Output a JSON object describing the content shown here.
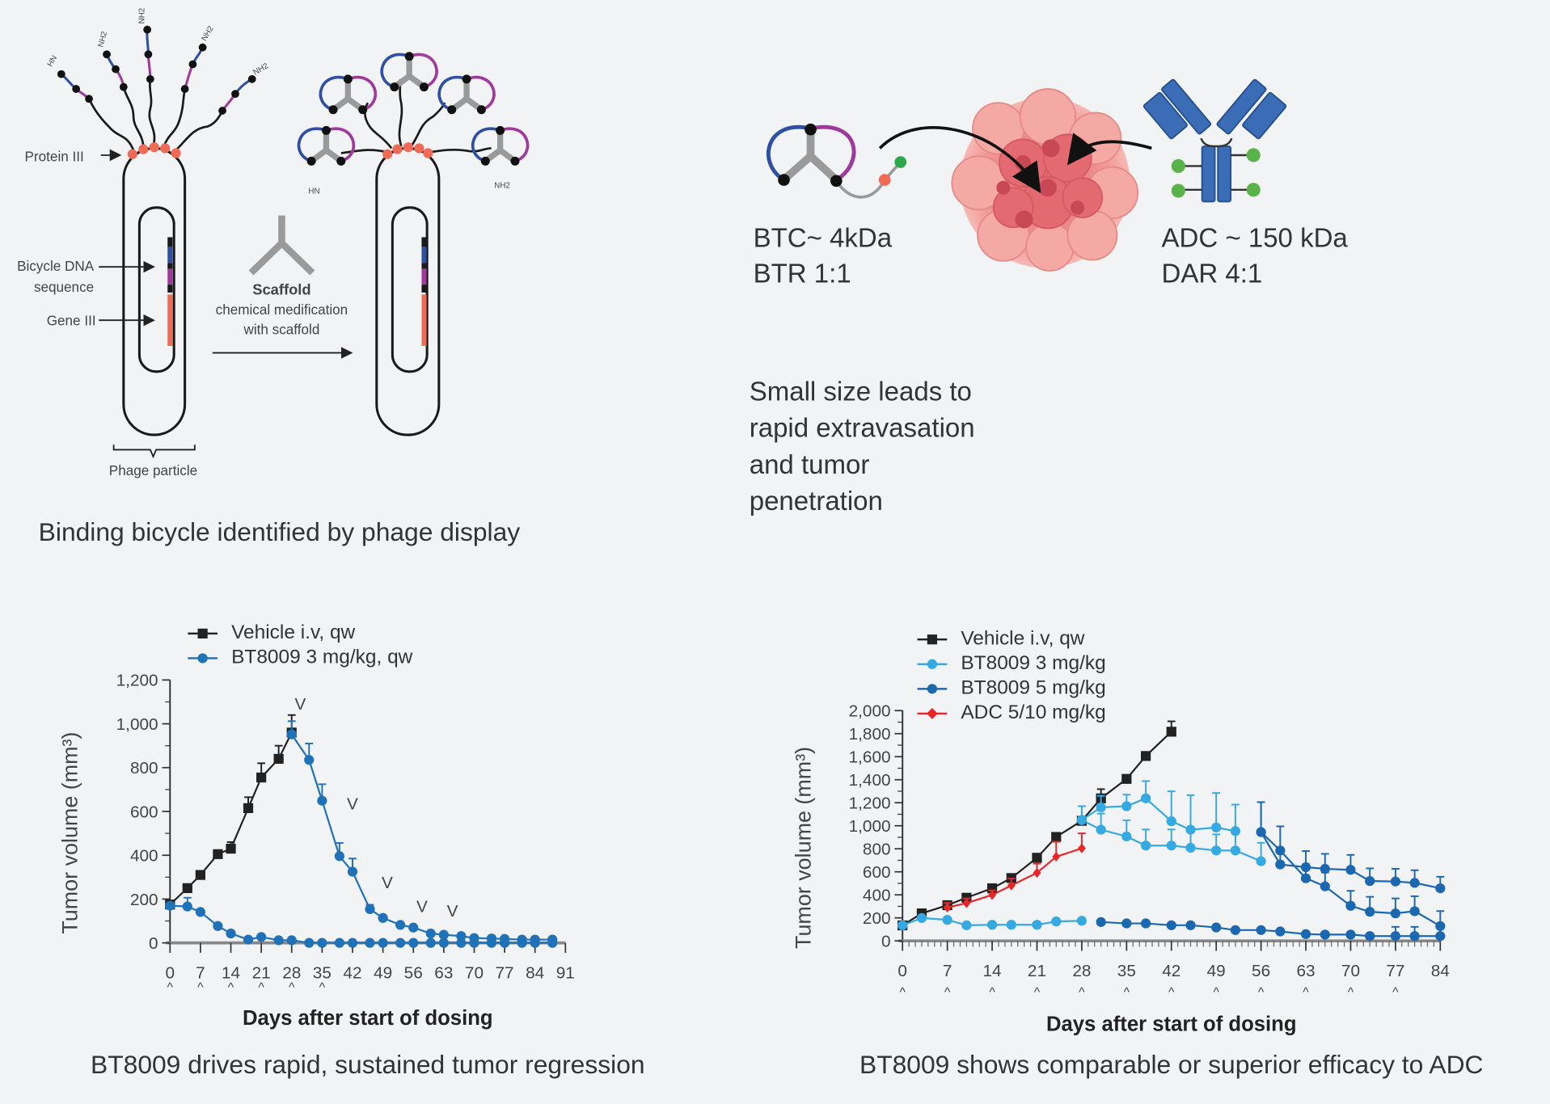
{
  "diagram_phage": {
    "protein_label": "Protein III",
    "dna_label_1": "Bicycle DNA",
    "dna_label_2": "sequence",
    "gene_label": "Gene III",
    "scaffold_title": "Scaffold",
    "scaffold_line1": "chemical medification",
    "scaffold_line2": "with scaffold",
    "particle_label": "Phage particle",
    "terminal_nh2": "NH2",
    "terminal_hn": "HN",
    "caption": "Binding bicycle identified by phage display",
    "colors": {
      "blue": "#2e4fa3",
      "magenta": "#a0399c",
      "red": "#ef6b55",
      "gray": "#9a9a9a"
    }
  },
  "diagram_btc": {
    "btc_line1": "BTC~ 4kDa",
    "btc_line2": "BTR 1:1",
    "adc_line1": "ADC ~ 150 kDa",
    "adc_line2": "DAR 4:1",
    "text_lines": [
      "Small size leads to",
      "rapid extravasation",
      "and tumor",
      "penetration"
    ],
    "colors": {
      "antibody": "#3a6db5",
      "payload": "#5ab34a",
      "tumor": "#f08a8a"
    }
  },
  "chart_data": [
    {
      "type": "line",
      "xlabel": "Days after start of dosing",
      "ylabel": "Tumor volume (mm³)",
      "caption": "BT8009 drives rapid, sustained tumor regression",
      "xlim": [
        0,
        91
      ],
      "ylim": [
        0,
        1200
      ],
      "xticks": [
        "0",
        "7",
        "14",
        "21",
        "28",
        "35",
        "42",
        "49",
        "56",
        "63",
        "70",
        "77",
        "84",
        "91"
      ],
      "yticks": [
        "0",
        "200",
        "400",
        "600",
        "800",
        "1,000",
        "1,200"
      ],
      "grid": false,
      "legend": "top-left",
      "dosing_marker": "^",
      "dosing_days": [
        0,
        7,
        14,
        21,
        28,
        35
      ],
      "annotations": [
        {
          "text": "V",
          "x": 30,
          "y": 1065
        },
        {
          "text": "V",
          "x": 42,
          "y": 610
        },
        {
          "text": "V",
          "x": 50,
          "y": 250
        },
        {
          "text": "V",
          "x": 58,
          "y": 140
        },
        {
          "text": "V",
          "x": 65,
          "y": 120
        }
      ],
      "series": [
        {
          "name": "Vehicle i.v, qw",
          "color": "#222222",
          "marker": "square",
          "x": [
            0,
            4,
            7,
            11,
            14,
            18,
            21,
            25,
            28
          ],
          "y": [
            175,
            250,
            310,
            405,
            430,
            615,
            755,
            840,
            960
          ],
          "err": [
            10,
            10,
            10,
            10,
            30,
            50,
            65,
            60,
            80
          ]
        },
        {
          "name": "BT8009 3 mg/kg, qw",
          "color": "#1f72b8",
          "marker": "circle",
          "x": [
            0,
            4,
            7,
            11,
            14,
            18,
            21,
            25,
            28,
            32,
            35,
            39,
            42,
            46,
            49,
            53,
            56,
            60,
            63,
            67,
            70,
            74,
            77,
            81,
            84,
            88
          ],
          "y": [
            170,
            166,
            141,
            77,
            43,
            15,
            27,
            12,
            12,
            0,
            0,
            0,
            0,
            0,
            0,
            0,
            0,
            0,
            0,
            0,
            0,
            0,
            0,
            0,
            0,
            0
          ],
          "err": [
            10,
            40,
            10,
            10,
            10,
            8,
            8,
            5,
            5,
            0,
            0,
            0,
            0,
            0,
            0,
            0,
            0,
            0,
            0,
            0,
            0,
            0,
            0,
            0,
            0,
            0
          ]
        },
        {
          "color": "#1f72b8",
          "marker": "circle",
          "x": [
            28,
            32,
            35,
            39,
            42,
            46,
            49,
            53,
            56,
            60,
            63,
            67,
            70,
            74,
            77,
            81,
            84,
            88
          ],
          "y": [
            952,
            835,
            649,
            396,
            325,
            154,
            114,
            82,
            70,
            43,
            37,
            31,
            22,
            20,
            18,
            15,
            15,
            15
          ],
          "err": [
            60,
            75,
            75,
            60,
            60,
            20,
            10,
            8,
            8,
            8,
            8,
            8,
            8,
            8,
            8,
            8,
            8,
            8
          ]
        }
      ]
    },
    {
      "type": "line",
      "xlabel": "Days after start of dosing",
      "ylabel": "Tumor volume (mm³)",
      "caption": "BT8009 shows comparable or superior efficacy to ADC",
      "xlim": [
        0,
        84
      ],
      "ylim": [
        0,
        2000
      ],
      "xticks": [
        "0",
        "7",
        "14",
        "21",
        "28",
        "35",
        "42",
        "49",
        "56",
        "63",
        "70",
        "77",
        "84"
      ],
      "yticks": [
        "0",
        "200",
        "400",
        "600",
        "800",
        "1,000",
        "1,200",
        "1,400",
        "1,600",
        "1,800",
        "2,000"
      ],
      "grid": false,
      "legend": "top-left",
      "dosing_marker": "^",
      "dosing_days": [
        0,
        7,
        14,
        21,
        28,
        35,
        42,
        49,
        56,
        63,
        70,
        77
      ],
      "series": [
        {
          "name": "Vehicle i.v, qw",
          "color": "#222222",
          "marker": "square",
          "x": [
            0,
            3,
            7,
            10,
            14,
            17,
            21,
            24,
            28,
            31,
            35,
            38,
            42
          ],
          "y": [
            135,
            239,
            310,
            375,
            457,
            546,
            722,
            903,
            1043,
            1238,
            1407,
            1606,
            1817
          ],
          "err": [
            20,
            20,
            20,
            20,
            20,
            20,
            25,
            25,
            25,
            80,
            25,
            25,
            90
          ]
        },
        {
          "name": "BT8009 3 mg/kg",
          "color": "#35a9e1",
          "marker": "circle",
          "x": [
            0,
            3,
            7,
            10,
            14,
            17,
            21,
            24,
            28
          ],
          "y": [
            135,
            199,
            183,
            136,
            140,
            140,
            140,
            169,
            175
          ],
          "err": [
            15,
            15,
            15,
            15,
            15,
            15,
            15,
            15,
            15
          ]
        },
        {
          "name": "BT8009 5 mg/kg",
          "color": "#1b67b0",
          "marker": "circle",
          "x": [
            31,
            35,
            38,
            42,
            45,
            49,
            52,
            56,
            59,
            63,
            66,
            70,
            73,
            77,
            80,
            84
          ],
          "y": [
            164,
            152,
            152,
            136,
            136,
            117,
            94,
            94,
            82,
            59,
            55,
            55,
            42,
            42,
            42,
            42
          ],
          "err": [
            15,
            15,
            15,
            15,
            15,
            15,
            15,
            15,
            15,
            15,
            15,
            15,
            15,
            80,
            80,
            80
          ]
        },
        {
          "name": "ADC 5/10 mg/kg",
          "color": "#e8262a",
          "marker": "diamond",
          "x": [
            7,
            10,
            14,
            17,
            21,
            24,
            28
          ],
          "y": [
            290,
            328,
            399,
            481,
            591,
            731,
            804
          ],
          "err": [
            40,
            40,
            40,
            60,
            80,
            130,
            130
          ]
        },
        {
          "color": "#35a9e1",
          "marker": "circle",
          "x": [
            28,
            31,
            35,
            38,
            42,
            45,
            49,
            52
          ],
          "y": [
            1050,
            1160,
            1170,
            1238,
            1039,
            966,
            985,
            954
          ],
          "err": [
            120,
            100,
            100,
            150,
            260,
            300,
            300,
            230
          ]
        },
        {
          "color": "#35a9e1",
          "marker": "circle",
          "x": [
            28,
            31,
            35,
            38,
            42,
            45,
            49,
            52,
            56
          ],
          "y": [
            1050,
            966,
            907,
            828,
            828,
            809,
            785,
            785,
            692
          ],
          "err": [
            120,
            140,
            140,
            140,
            140,
            140,
            140,
            180,
            160
          ]
        },
        {
          "color": "#1b67b0",
          "marker": "circle",
          "x": [
            56,
            59,
            63,
            66,
            70,
            73,
            77,
            80,
            84
          ],
          "y": [
            945,
            785,
            544,
            474,
            305,
            253,
            239,
            258,
            129
          ],
          "err": [
            260,
            210,
            120,
            120,
            130,
            130,
            130,
            130,
            130
          ]
        },
        {
          "color": "#1b67b0",
          "marker": "circle",
          "x": [
            56,
            59,
            63,
            66,
            70,
            73,
            77,
            80,
            84
          ],
          "y": [
            945,
            664,
            640,
            626,
            617,
            520,
            516,
            504,
            457
          ],
          "err": [
            260,
            130,
            140,
            130,
            130,
            110,
            110,
            110,
            100
          ]
        }
      ]
    }
  ]
}
